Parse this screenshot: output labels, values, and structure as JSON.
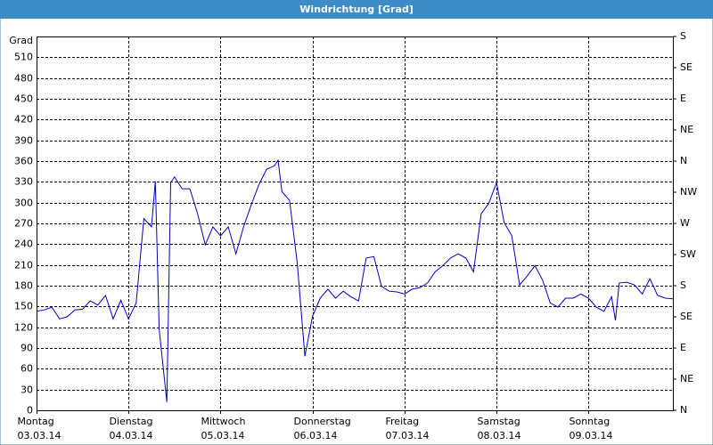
{
  "chart_data": {
    "type": "line",
    "title": "Windrichtung [Grad]",
    "y_label": "Grad",
    "color": "#0000c0",
    "grid": true,
    "xlim": [
      0,
      166
    ],
    "xticks": [
      {
        "value": 0,
        "label": "Montag",
        "date": "03.03.14"
      },
      {
        "value": 24,
        "label": "Dienstag",
        "date": "04.03.14"
      },
      {
        "value": 48,
        "label": "Mittwoch",
        "date": "05.03.14"
      },
      {
        "value": 72,
        "label": "Donnerstag",
        "date": "06.03.14"
      },
      {
        "value": 96,
        "label": "Freitag",
        "date": "07.03.14"
      },
      {
        "value": 120,
        "label": "Samstag",
        "date": "08.03.14"
      },
      {
        "value": 144,
        "label": "Sonntag",
        "date": "09.03.14"
      }
    ],
    "ylim": [
      0,
      540
    ],
    "yticks": [
      0,
      30,
      60,
      90,
      120,
      150,
      180,
      210,
      240,
      270,
      300,
      330,
      360,
      390,
      420,
      450,
      480,
      510
    ],
    "y2lim": [
      0,
      540
    ],
    "y2ticks": [
      {
        "value": 0,
        "label": "N"
      },
      {
        "value": 45,
        "label": "NE"
      },
      {
        "value": 90,
        "label": "E"
      },
      {
        "value": 135,
        "label": "SE"
      },
      {
        "value": 180,
        "label": "S"
      },
      {
        "value": 225,
        "label": "SW"
      },
      {
        "value": 270,
        "label": "W"
      },
      {
        "value": 315,
        "label": "NW"
      },
      {
        "value": 360,
        "label": "N"
      },
      {
        "value": 405,
        "label": "NE"
      },
      {
        "value": 450,
        "label": "E"
      },
      {
        "value": 495,
        "label": "SE"
      },
      {
        "value": 540,
        "label": "S"
      }
    ],
    "x": [
      0,
      2,
      4,
      6,
      8,
      10,
      12,
      14,
      16,
      18,
      20,
      22,
      24,
      26,
      28,
      30,
      31,
      32,
      34,
      35,
      36,
      38,
      40,
      42,
      44,
      46,
      48,
      50,
      52,
      54,
      56,
      58,
      60,
      62,
      63,
      64,
      66,
      68,
      70,
      72,
      74,
      76,
      78,
      80,
      82,
      84,
      86,
      88,
      90,
      92,
      94,
      96,
      98,
      100,
      102,
      104,
      106,
      108,
      110,
      112,
      114,
      116,
      118,
      120,
      122,
      124,
      126,
      128,
      130,
      132,
      134,
      136,
      138,
      140,
      142,
      144,
      146,
      148,
      150,
      151,
      152,
      154,
      156,
      158,
      160,
      162,
      164,
      166
    ],
    "values": [
      143,
      145,
      149,
      132,
      135,
      145,
      146,
      158,
      152,
      166,
      132,
      159,
      132,
      155,
      277,
      265,
      331,
      117,
      12,
      329,
      337,
      320,
      320,
      284,
      239,
      265,
      252,
      265,
      226,
      265,
      297,
      326,
      348,
      353,
      361,
      316,
      303,
      213,
      78,
      136,
      162,
      175,
      162,
      172,
      164,
      158,
      220,
      222,
      179,
      172,
      171,
      168,
      175,
      177,
      184,
      200,
      209,
      220,
      226,
      220,
      200,
      284,
      299,
      329,
      271,
      252,
      181,
      194,
      209,
      188,
      155,
      149,
      162,
      162,
      168,
      162,
      149,
      143,
      164,
      130,
      184,
      185,
      181,
      168,
      190,
      166,
      162,
      161
    ]
  }
}
